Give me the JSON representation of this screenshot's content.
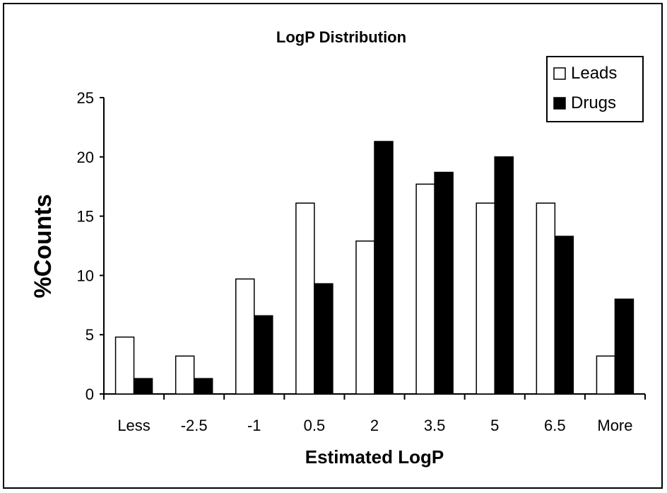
{
  "chart_data": {
    "type": "bar",
    "title": "LogP Distribution",
    "xlabel": "Estimated LogP",
    "ylabel": "%Counts",
    "categories": [
      "Less",
      "-2.5",
      "-1",
      "0.5",
      "2",
      "3.5",
      "5",
      "6.5",
      "More"
    ],
    "series": [
      {
        "name": "Leads",
        "color": "#ffffff",
        "values": [
          4.8,
          3.2,
          9.7,
          16.1,
          12.9,
          17.7,
          16.1,
          16.1,
          3.2
        ]
      },
      {
        "name": "Drugs",
        "color": "#000000",
        "values": [
          1.3,
          1.3,
          6.6,
          9.3,
          21.3,
          18.7,
          20.0,
          13.3,
          8.0
        ]
      }
    ],
    "ylim": [
      0,
      25
    ],
    "yticks": [
      0,
      5,
      10,
      15,
      20,
      25
    ],
    "grid": false,
    "legend_position": "top-right"
  }
}
